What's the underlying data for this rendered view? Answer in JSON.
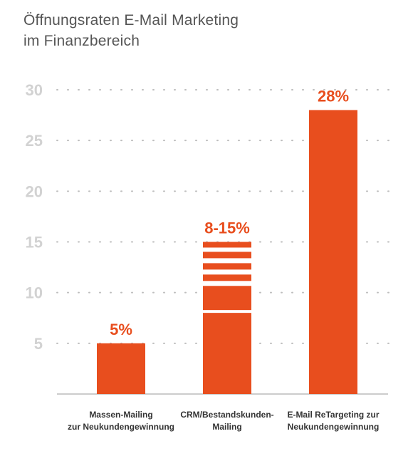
{
  "title": {
    "line1": "Öffnungsraten E-Mail Marketing",
    "line2": "im Finanzbereich"
  },
  "chart_data": {
    "type": "bar",
    "title": "Öffnungsraten E-Mail Marketing im Finanzbereich",
    "xlabel": "",
    "ylabel": "",
    "ylim": [
      0,
      30
    ],
    "yticks": [
      5,
      10,
      15,
      20,
      25,
      30
    ],
    "yticklabels": [
      "5",
      "10",
      "15",
      "20",
      "25",
      "30"
    ],
    "grid": true,
    "categories": [
      [
        "Massen-Mailing",
        "zur Neukundengewinnung"
      ],
      [
        "CRM/Bestandskunden-",
        "Mailing"
      ],
      [
        "E-Mail ReTargeting zur",
        "Neukundengewinnung"
      ]
    ],
    "bars": [
      {
        "value": 5,
        "label": "5%"
      },
      {
        "value_range": [
          8,
          15
        ],
        "label": "8-15%"
      },
      {
        "value": 28,
        "label": "28%"
      }
    ],
    "colors": {
      "bar": "#e84e1e",
      "value_label": "#e84e1e",
      "tick_label": "#d2d2d2",
      "grid": "#bdbdbd",
      "axis": "#cccccc"
    }
  }
}
